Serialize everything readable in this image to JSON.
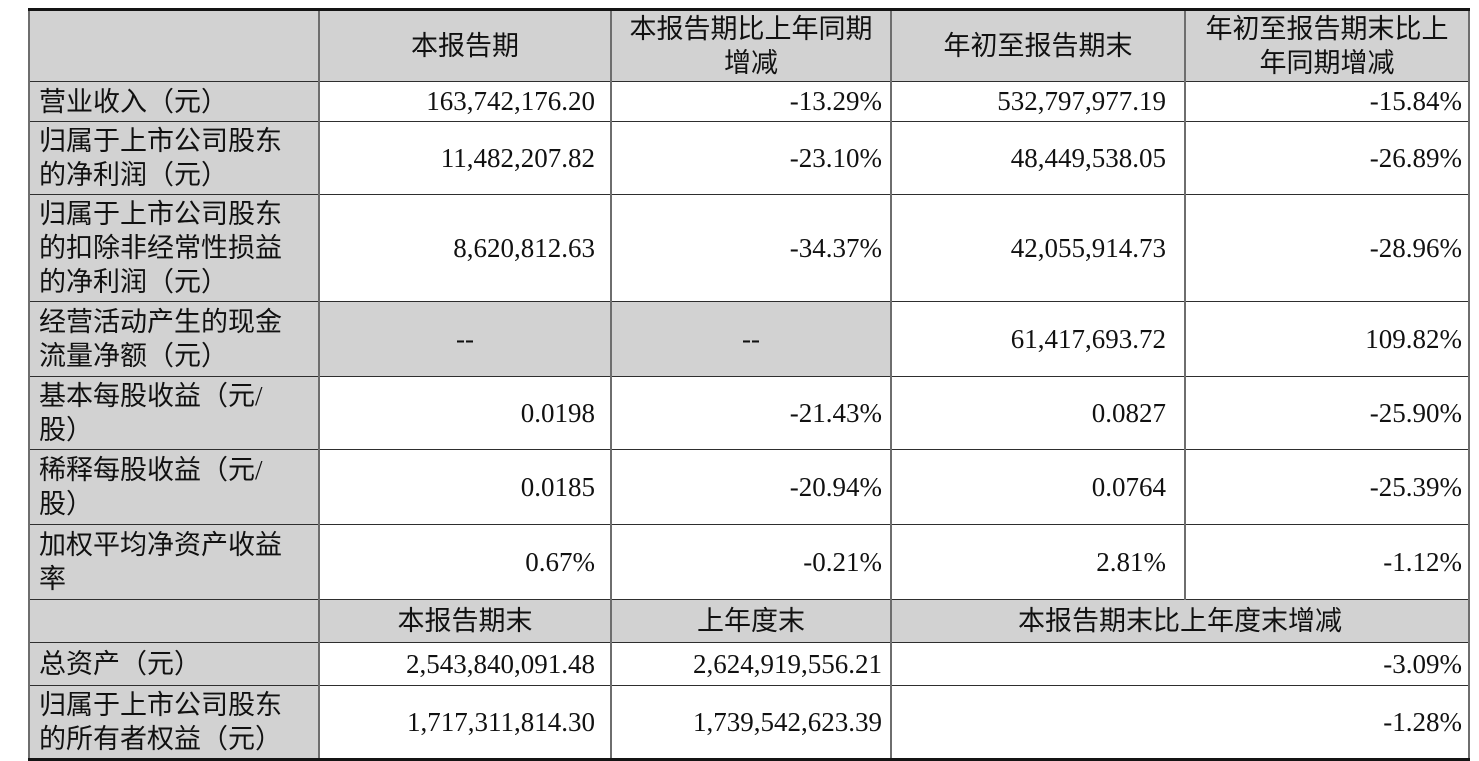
{
  "table": {
    "header1": [
      "",
      "本报告期",
      "本报告期比上年同期增减",
      "年初至报告期末",
      "年初至报告期末比上年同期增减"
    ],
    "rows_top": [
      {
        "label": "营业收入（元）",
        "current": "163,742,176.20",
        "current_yoy": "-13.29%",
        "ytd": "532,797,977.19",
        "ytd_yoy": "-15.84%"
      },
      {
        "label": "归属于上市公司股东的净利润（元）",
        "current": "11,482,207.82",
        "current_yoy": "-23.10%",
        "ytd": "48,449,538.05",
        "ytd_yoy": "-26.89%"
      },
      {
        "label": "归属于上市公司股东的扣除非经常性损益的净利润（元）",
        "current": "8,620,812.63",
        "current_yoy": "-34.37%",
        "ytd": "42,055,914.73",
        "ytd_yoy": "-28.96%"
      },
      {
        "label": "经营活动产生的现金流量净额（元）",
        "current": "--",
        "current_yoy": "--",
        "ytd": "61,417,693.72",
        "ytd_yoy": "109.82%"
      },
      {
        "label": "基本每股收益（元/股）",
        "current": "0.0198",
        "current_yoy": "-21.43%",
        "ytd": "0.0827",
        "ytd_yoy": "-25.90%"
      },
      {
        "label": "稀释每股收益（元/股）",
        "current": "0.0185",
        "current_yoy": "-20.94%",
        "ytd": "0.0764",
        "ytd_yoy": "-25.39%"
      },
      {
        "label": "加权平均净资产收益率",
        "current": "0.67%",
        "current_yoy": "-0.21%",
        "ytd": "2.81%",
        "ytd_yoy": "-1.12%"
      }
    ],
    "header2": [
      "",
      "本报告期末",
      "上年度末",
      "本报告期末比上年度末增减"
    ],
    "rows_bottom": [
      {
        "label": "总资产（元）",
        "period_end": "2,543,840,091.48",
        "prior_year_end": "2,624,919,556.21",
        "change": "-3.09%"
      },
      {
        "label": "归属于上市公司股东的所有者权益（元）",
        "period_end": "1,717,311,814.30",
        "prior_year_end": "1,739,542,623.39",
        "change": "-1.28%"
      }
    ]
  },
  "colors": {
    "header_and_label_background": "#d2d2d2",
    "grid_line": "#2e2e2e",
    "outer_rule": "#141414",
    "text": "#111111"
  }
}
